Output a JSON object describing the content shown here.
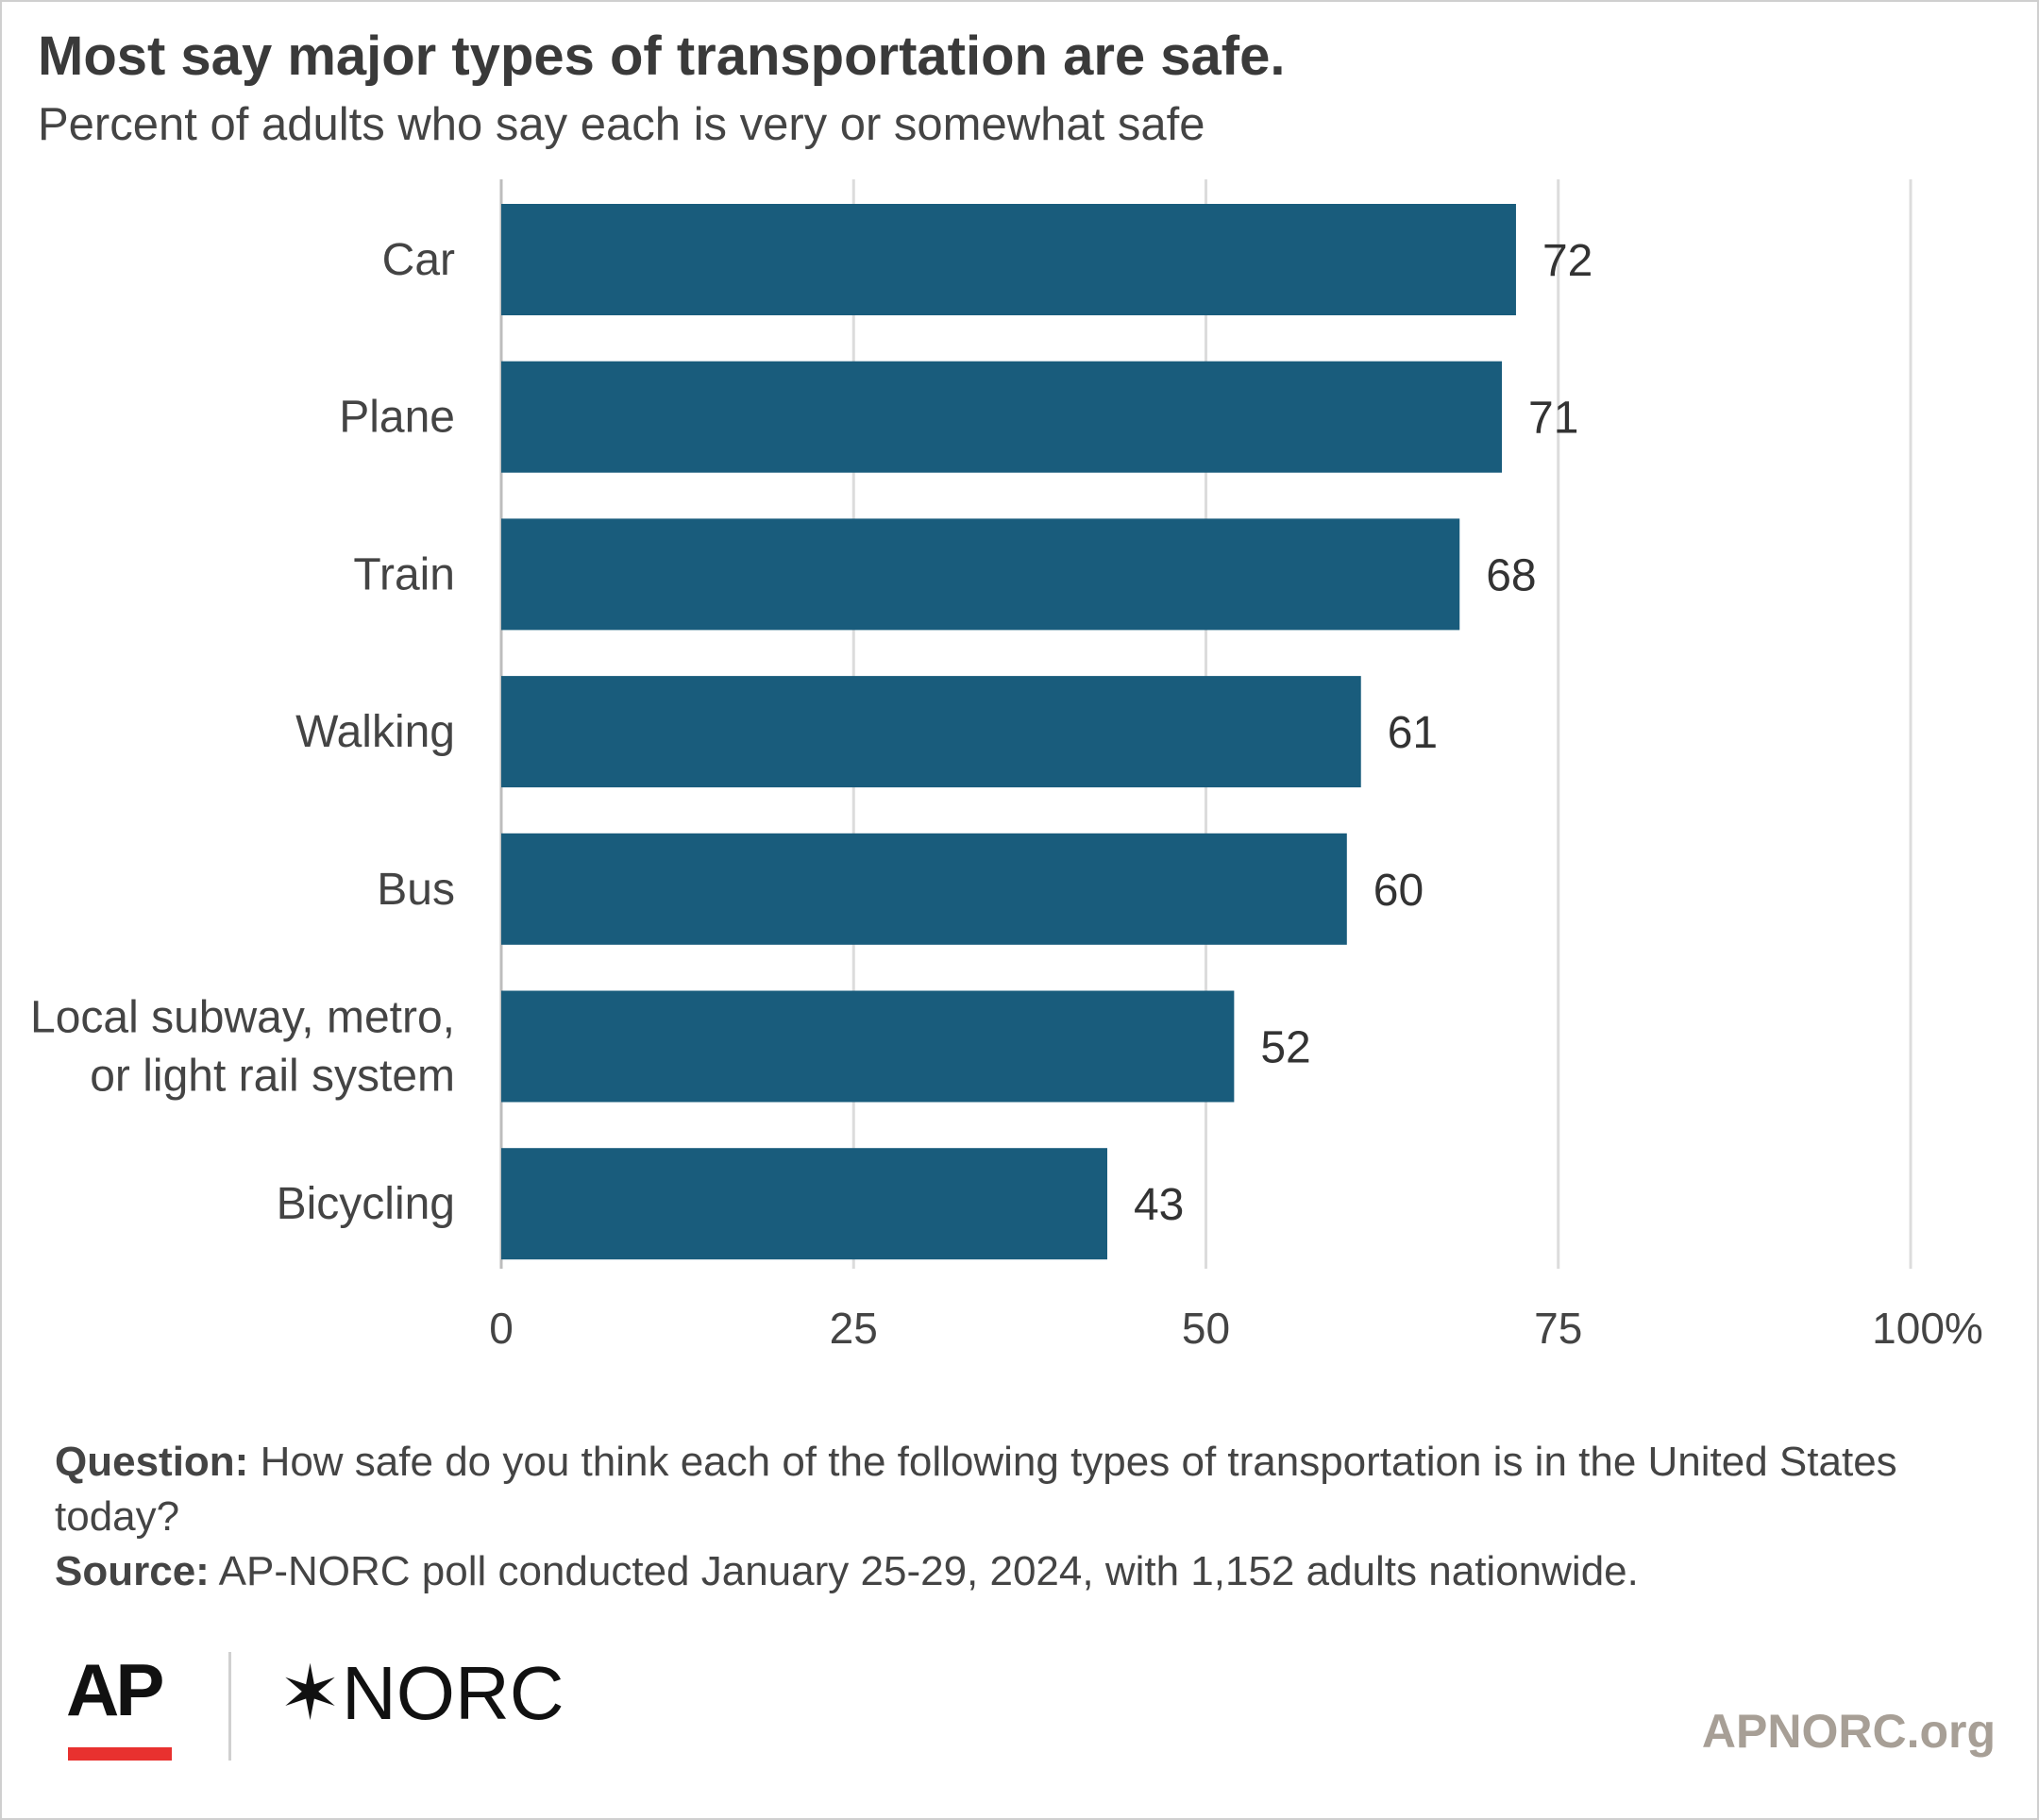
{
  "header": {
    "title": "Most say major types of transportation are safe.",
    "subtitle": "Percent of adults who say each is very or somewhat safe"
  },
  "chart_data": {
    "type": "bar",
    "orientation": "horizontal",
    "categories": [
      "Car",
      "Plane",
      "Train",
      "Walking",
      "Bus",
      "Local subway, metro,\nor light rail system",
      "Bicycling"
    ],
    "values": [
      72,
      71,
      68,
      61,
      60,
      52,
      43
    ],
    "x_ticks": [
      "0",
      "25",
      "50",
      "75",
      "100%"
    ],
    "xlim": [
      0,
      100
    ],
    "grid": true,
    "bar_color": "#195c7c"
  },
  "notes": {
    "question_label": "Question:",
    "question_text": "How safe do you think each of the following types of transportation is in the United States today?",
    "source_label": "Source:",
    "source_text": "AP-NORC poll conducted January 25-29, 2024, with 1,152 adults nationwide."
  },
  "footer": {
    "ap_logo": "AP",
    "norc_star": "✶",
    "norc_text": "NORC",
    "site": "APNORC.org",
    "ap_red": "#e8312f",
    "site_color": "#a79f96"
  }
}
